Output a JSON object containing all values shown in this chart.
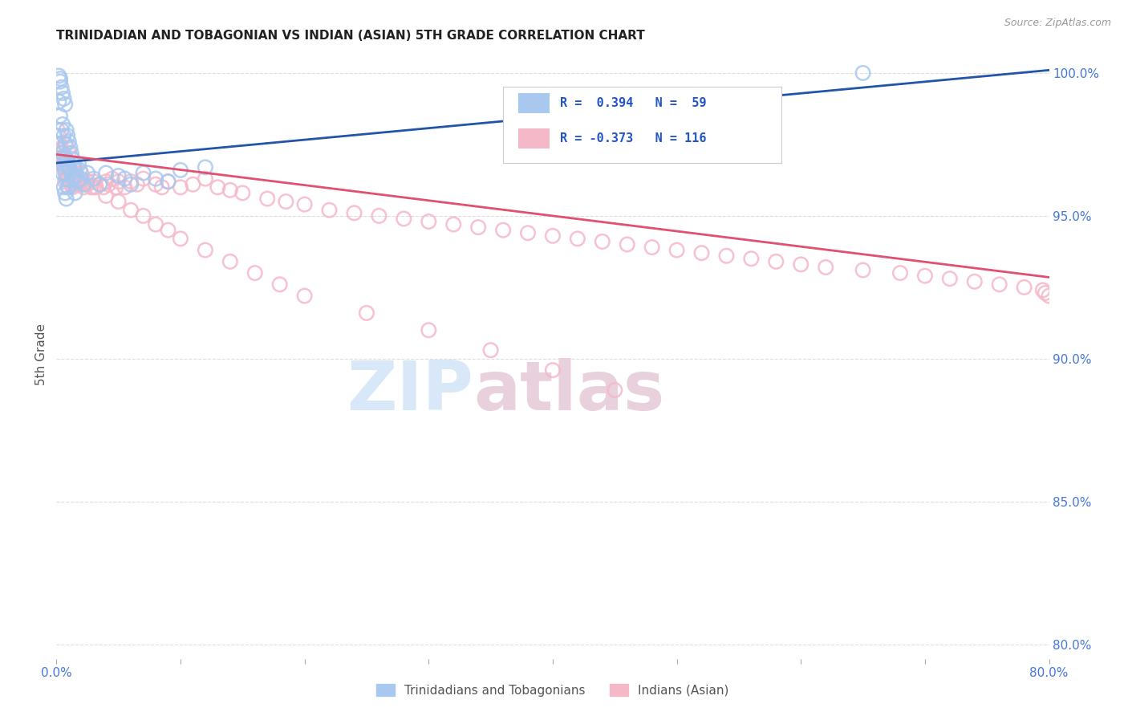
{
  "title": "TRINIDADIAN AND TOBAGONIAN VS INDIAN (ASIAN) 5TH GRADE CORRELATION CHART",
  "source": "Source: ZipAtlas.com",
  "ylabel": "5th Grade",
  "ylabel_right_ticks": [
    "100.0%",
    "95.0%",
    "90.0%",
    "85.0%",
    "80.0%"
  ],
  "ylabel_right_vals": [
    1.0,
    0.95,
    0.9,
    0.85,
    0.8
  ],
  "legend_label_blue": "Trinidadians and Tobagonians",
  "legend_label_pink": "Indians (Asian)",
  "legend_r_blue": "R =  0.394",
  "legend_n_blue": "N =  59",
  "legend_r_pink": "R = -0.373",
  "legend_n_pink": "N = 116",
  "blue_color": "#A8C8F0",
  "pink_color": "#F5B8C8",
  "blue_line_color": "#2255AA",
  "pink_line_color": "#E05070",
  "legend_text_color": "#2255CC",
  "source_text_color": "#999999",
  "title_color": "#222222",
  "axis_label_color": "#555555",
  "right_tick_color": "#4477DD",
  "bottom_tick_color": "#4477DD",
  "grid_color": "#DDDDDD",
  "watermark_zip_color": "#D8E8F8",
  "watermark_atlas_color": "#E8D0DC",
  "xmin": 0.0,
  "xmax": 0.8,
  "ymin": 0.795,
  "ymax": 1.008,
  "blue_x": [
    0.001,
    0.002,
    0.002,
    0.003,
    0.003,
    0.003,
    0.004,
    0.004,
    0.004,
    0.005,
    0.005,
    0.005,
    0.005,
    0.006,
    0.006,
    0.006,
    0.006,
    0.007,
    0.007,
    0.007,
    0.007,
    0.008,
    0.008,
    0.008,
    0.008,
    0.009,
    0.009,
    0.009,
    0.01,
    0.01,
    0.01,
    0.011,
    0.011,
    0.012,
    0.012,
    0.013,
    0.013,
    0.014,
    0.015,
    0.015,
    0.016,
    0.017,
    0.018,
    0.019,
    0.02,
    0.022,
    0.025,
    0.03,
    0.035,
    0.04,
    0.05,
    0.055,
    0.06,
    0.07,
    0.08,
    0.09,
    0.1,
    0.12,
    0.65
  ],
  "blue_y": [
    0.975,
    0.99,
    0.999,
    0.998,
    0.997,
    0.985,
    0.995,
    0.98,
    0.97,
    0.993,
    0.982,
    0.972,
    0.965,
    0.991,
    0.978,
    0.968,
    0.96,
    0.989,
    0.975,
    0.965,
    0.958,
    0.98,
    0.97,
    0.963,
    0.956,
    0.978,
    0.968,
    0.96,
    0.976,
    0.967,
    0.96,
    0.974,
    0.966,
    0.972,
    0.965,
    0.97,
    0.963,
    0.968,
    0.966,
    0.958,
    0.964,
    0.962,
    0.968,
    0.966,
    0.963,
    0.961,
    0.965,
    0.963,
    0.961,
    0.965,
    0.964,
    0.963,
    0.961,
    0.965,
    0.963,
    0.962,
    0.966,
    0.967,
    1.0
  ],
  "pink_x": [
    0.001,
    0.002,
    0.002,
    0.003,
    0.003,
    0.004,
    0.004,
    0.005,
    0.005,
    0.006,
    0.006,
    0.007,
    0.007,
    0.007,
    0.008,
    0.008,
    0.009,
    0.009,
    0.01,
    0.01,
    0.011,
    0.011,
    0.012,
    0.012,
    0.013,
    0.013,
    0.014,
    0.015,
    0.015,
    0.016,
    0.017,
    0.018,
    0.019,
    0.02,
    0.022,
    0.025,
    0.028,
    0.03,
    0.032,
    0.035,
    0.038,
    0.04,
    0.042,
    0.045,
    0.048,
    0.05,
    0.055,
    0.06,
    0.065,
    0.07,
    0.08,
    0.085,
    0.09,
    0.1,
    0.11,
    0.12,
    0.13,
    0.14,
    0.15,
    0.17,
    0.185,
    0.2,
    0.22,
    0.24,
    0.26,
    0.28,
    0.3,
    0.32,
    0.34,
    0.36,
    0.38,
    0.4,
    0.42,
    0.44,
    0.46,
    0.48,
    0.5,
    0.52,
    0.54,
    0.56,
    0.58,
    0.6,
    0.62,
    0.65,
    0.68,
    0.7,
    0.72,
    0.74,
    0.76,
    0.78,
    0.795,
    0.797,
    0.8,
    0.008,
    0.01,
    0.015,
    0.02,
    0.025,
    0.03,
    0.04,
    0.05,
    0.06,
    0.07,
    0.08,
    0.09,
    0.1,
    0.12,
    0.14,
    0.16,
    0.18,
    0.2,
    0.25,
    0.3,
    0.35,
    0.4,
    0.45
  ],
  "pink_y": [
    0.98,
    0.978,
    0.975,
    0.975,
    0.972,
    0.973,
    0.97,
    0.972,
    0.968,
    0.971,
    0.967,
    0.97,
    0.966,
    0.962,
    0.969,
    0.965,
    0.968,
    0.964,
    0.967,
    0.963,
    0.966,
    0.962,
    0.965,
    0.961,
    0.964,
    0.96,
    0.963,
    0.965,
    0.961,
    0.963,
    0.961,
    0.963,
    0.961,
    0.962,
    0.96,
    0.961,
    0.96,
    0.962,
    0.96,
    0.961,
    0.96,
    0.962,
    0.961,
    0.963,
    0.96,
    0.962,
    0.96,
    0.962,
    0.961,
    0.963,
    0.961,
    0.96,
    0.962,
    0.96,
    0.961,
    0.963,
    0.96,
    0.959,
    0.958,
    0.956,
    0.955,
    0.954,
    0.952,
    0.951,
    0.95,
    0.949,
    0.948,
    0.947,
    0.946,
    0.945,
    0.944,
    0.943,
    0.942,
    0.941,
    0.94,
    0.939,
    0.938,
    0.937,
    0.936,
    0.935,
    0.934,
    0.933,
    0.932,
    0.931,
    0.93,
    0.929,
    0.928,
    0.927,
    0.926,
    0.925,
    0.924,
    0.923,
    0.922,
    0.975,
    0.972,
    0.968,
    0.965,
    0.962,
    0.96,
    0.957,
    0.955,
    0.952,
    0.95,
    0.947,
    0.945,
    0.942,
    0.938,
    0.934,
    0.93,
    0.926,
    0.922,
    0.916,
    0.91,
    0.903,
    0.896,
    0.889
  ],
  "blue_trend_x0": 0.0,
  "blue_trend_x1": 0.8,
  "blue_trend_y0": 0.9685,
  "blue_trend_y1": 1.001,
  "pink_trend_x0": 0.0,
  "pink_trend_x1": 0.8,
  "pink_trend_y0": 0.9715,
  "pink_trend_y1": 0.9285
}
